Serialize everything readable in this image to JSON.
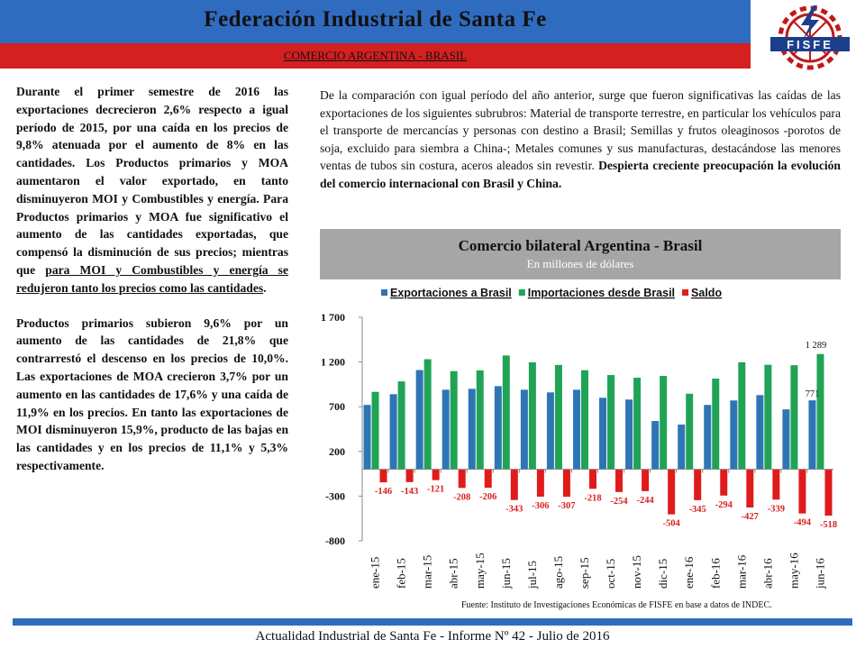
{
  "header": {
    "title": "Federación Industrial de Santa Fe",
    "subtitle": "COMERCIO ARGENTINA - BRASIL",
    "logo_text": "FISFE"
  },
  "left_column": {
    "p1_a": "Durante el primer semestre de 2016 las exportaciones decrecieron 2,6% respecto a igual período de 2015, por una caída en los precios de 9,8% atenuada por el aumento de 8% en las cantidades. Los Productos primarios y MOA aumentaron el valor exportado, en tanto disminuyeron MOI y Combustibles y energía. Para Productos primarios y MOA fue significativo el aumento de las cantidades exportadas, que compensó la disminución de sus precios; mientras que ",
    "p1_b": "para MOI y Combustibles y energía se redujeron tanto los precios como las cantidades",
    "p1_c": ".",
    "p2": "Productos primarios subieron 9,6% por un aumento de las cantidades de 21,8% que contrarrestó el descenso en los precios de 10,0%. Las exportaciones de MOA crecieron 3,7% por un aumento en las cantidades de 17,6% y una caída de 11,9% en los precios. En tanto las exportaciones de MOI disminuyeron 15,9%, producto de las bajas en las cantidades y en los precios de 11,1% y 5,3% respectivamente."
  },
  "right_column": {
    "text_a": "De la comparación con igual período del año anterior, surge que fueron significativas las caídas de las exportaciones de los siguientes subrubros: Material de transporte terrestre, en particular los vehículos para el transporte de mercancías y personas con destino a Brasil; Semillas y frutos oleaginosos -porotos de soja, excluido para siembra a China-; Metales comunes y sus manufacturas, destacándose las menores ventas de tubos sin costura, aceros aleados sin revestir. ",
    "text_b": "Despierta creciente preocupación la evolución del comercio internacional con Brasil y China."
  },
  "chart_header": {
    "title": "Comercio bilateral Argentina - Brasil",
    "unit": "En millones de dólares"
  },
  "chart_data": {
    "type": "bar",
    "categories": [
      "ene-15",
      "feb-15",
      "mar-15",
      "abr-15",
      "may-15",
      "jun-15",
      "jul-15",
      "ago-15",
      "sep-15",
      "oct-15",
      "nov-15",
      "dic-15",
      "ene-16",
      "feb-16",
      "mar-16",
      "abr-16",
      "may-16",
      "jun-16"
    ],
    "series": [
      {
        "name": "Exportaciones a Brasil",
        "color": "#2e75b6",
        "values": [
          720,
          840,
          1110,
          890,
          900,
          930,
          890,
          860,
          890,
          800,
          780,
          540,
          500,
          720,
          770,
          830,
          670,
          771
        ]
      },
      {
        "name": "Importaciones desde Brasil",
        "color": "#21a355",
        "values": [
          866,
          983,
          1231,
          1098,
          1106,
          1273,
          1196,
          1167,
          1108,
          1054,
          1024,
          1044,
          845,
          1014,
          1197,
          1169,
          1164,
          1289
        ]
      },
      {
        "name": "Saldo",
        "color": "#e01b1b",
        "values": [
          -146,
          -143,
          -121,
          -208,
          -206,
          -343,
          -306,
          -307,
          -218,
          -254,
          -244,
          -504,
          -345,
          -294,
          -427,
          -339,
          -494,
          -518
        ]
      }
    ],
    "labeled_values": {
      "Exportaciones a Brasil": {
        "jun-16": "771"
      },
      "Importaciones desde Brasil": {
        "jun-16": "1 289"
      }
    },
    "saldo_labels": [
      "-146",
      "-143",
      "-121",
      "-208",
      "-206",
      "-343",
      "-306",
      "-307",
      "-218",
      "-254",
      "-244",
      "-504",
      "-345",
      "-294",
      "-427",
      "-339",
      "-494",
      "-518"
    ],
    "y_ticks": [
      1700,
      1200,
      700,
      200,
      -300,
      -800
    ],
    "y_tick_labels": [
      "1 700",
      "1 200",
      "700",
      "200",
      "-300",
      "-800"
    ],
    "ylim": [
      -800,
      1700
    ],
    "legend_position": "top",
    "xlabel": "",
    "ylabel": ""
  },
  "source_note": "Fuente: Instituto de Investigaciones Económicas de FISFE en base a datos de INDEC.",
  "footer": "Actualidad Industrial de Santa Fe - Informe Nº 42 - Julio de 2016"
}
